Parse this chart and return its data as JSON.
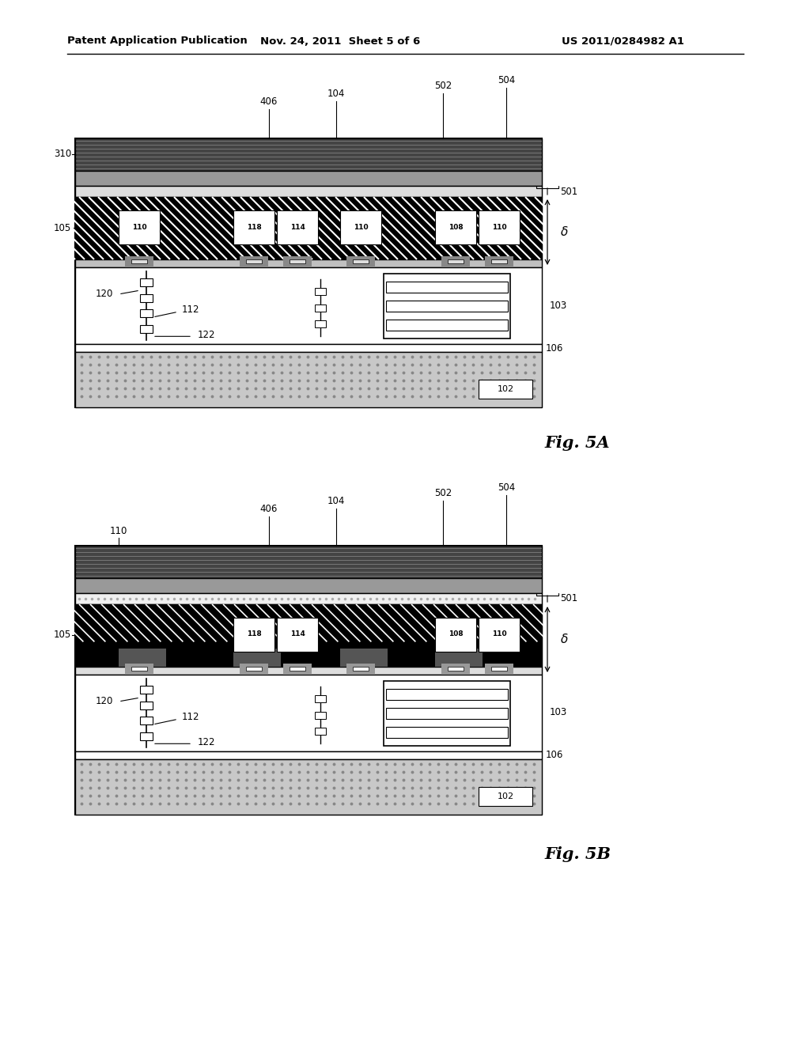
{
  "header_left": "Patent Application Publication",
  "header_mid": "Nov. 24, 2011  Sheet 5 of 6",
  "header_right": "US 2011/0284982 A1",
  "fig_a_label": "Fig. 5A",
  "fig_b_label": "Fig. 5B",
  "bg_color": "#ffffff"
}
